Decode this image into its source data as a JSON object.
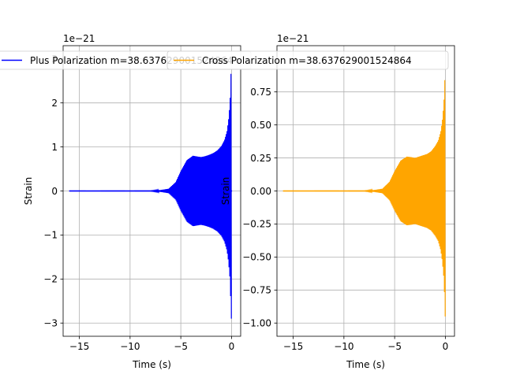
{
  "chart_data": [
    {
      "type": "line",
      "xlabel": "Time (s)",
      "ylabel": "Strain",
      "offset_text": "1e−21",
      "scale": 1e-21,
      "xlim": [
        -16.6,
        0.9
      ],
      "ylim": [
        -3.3,
        3.3
      ],
      "xticks": [
        -15,
        -10,
        -5,
        0
      ],
      "xtick_labels": [
        "−15",
        "−10",
        "−5",
        "0"
      ],
      "yticks": [
        -3,
        -2,
        -1,
        0,
        1,
        2,
        3
      ],
      "ytick_labels": [
        "−3",
        "−2",
        "−1",
        "0",
        "1",
        "2",
        "3"
      ],
      "grid": true,
      "legend": "upper center",
      "series": [
        {
          "name": "Plus Polarization m=38.637629001524864",
          "color": "#0000ff",
          "x_range": [
            -16,
            0.05
          ],
          "envelope": [
            [
              -16,
              0
            ],
            [
              -8,
              0.003
            ],
            [
              -7,
              0.02
            ],
            [
              -6.2,
              0.05
            ],
            [
              -5.5,
              0.2
            ],
            [
              -5,
              0.45
            ],
            [
              -4.4,
              0.7
            ],
            [
              -3.8,
              0.8
            ],
            [
              -3.3,
              0.78
            ],
            [
              -3,
              0.77
            ],
            [
              -2.6,
              0.79
            ],
            [
              -2.2,
              0.82
            ],
            [
              -1.8,
              0.86
            ],
            [
              -1.4,
              0.92
            ],
            [
              -1,
              1.02
            ],
            [
              -0.7,
              1.15
            ],
            [
              -0.45,
              1.35
            ],
            [
              -0.3,
              1.6
            ],
            [
              -0.15,
              2.0
            ],
            [
              -0.05,
              2.7
            ],
            [
              0,
              3.0
            ]
          ]
        }
      ]
    },
    {
      "type": "line",
      "xlabel": "Time (s)",
      "ylabel": "Strain",
      "offset_text": "1e−21",
      "scale": 1e-21,
      "xlim": [
        -16.6,
        0.9
      ],
      "ylim": [
        -1.1,
        1.1
      ],
      "xticks": [
        -15,
        -10,
        -5,
        0
      ],
      "xtick_labels": [
        "−15",
        "−10",
        "−5",
        "0"
      ],
      "yticks": [
        -1.0,
        -0.75,
        -0.5,
        -0.25,
        0.0,
        0.25,
        0.5,
        0.75
      ],
      "ytick_labels": [
        "−1.00",
        "−0.75",
        "−0.50",
        "−0.25",
        "0.00",
        "0.25",
        "0.50",
        "0.75"
      ],
      "grid": true,
      "legend": "upper center",
      "series": [
        {
          "name": "Cross Polarization m=38.637629001524864",
          "color": "#ffa500",
          "x_range": [
            -16,
            0.05
          ],
          "envelope": [
            [
              -16,
              0
            ],
            [
              -8,
              0.001
            ],
            [
              -7,
              0.007
            ],
            [
              -6.2,
              0.017
            ],
            [
              -5.5,
              0.07
            ],
            [
              -5,
              0.15
            ],
            [
              -4.4,
              0.23
            ],
            [
              -3.8,
              0.26
            ],
            [
              -3.3,
              0.255
            ],
            [
              -3,
              0.25
            ],
            [
              -2.6,
              0.26
            ],
            [
              -2.2,
              0.27
            ],
            [
              -1.8,
              0.28
            ],
            [
              -1.4,
              0.3
            ],
            [
              -1,
              0.34
            ],
            [
              -0.7,
              0.38
            ],
            [
              -0.45,
              0.45
            ],
            [
              -0.3,
              0.53
            ],
            [
              -0.15,
              0.66
            ],
            [
              -0.05,
              0.85
            ],
            [
              0,
              1.0
            ]
          ]
        }
      ]
    }
  ]
}
